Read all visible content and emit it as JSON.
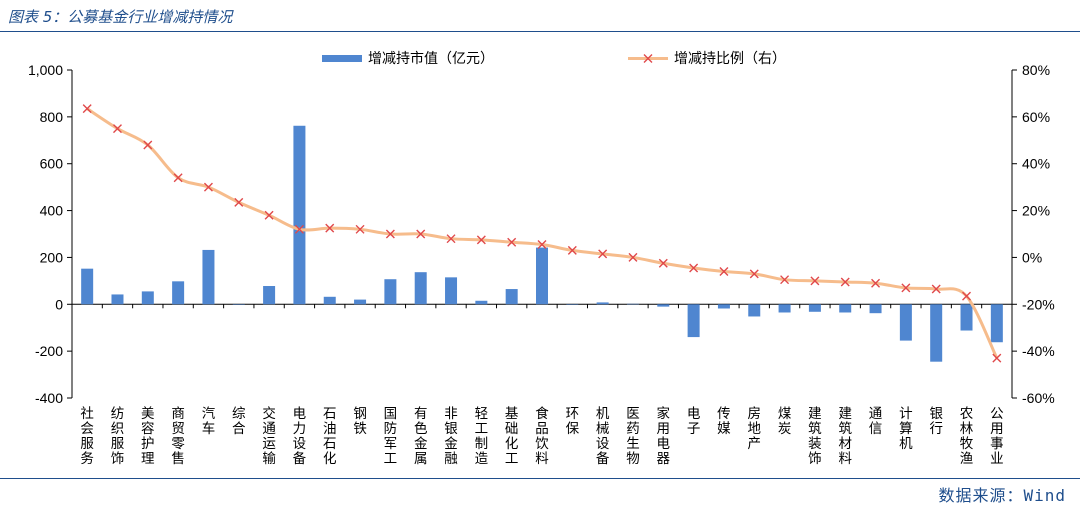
{
  "header": {
    "title": "图表 5：公募基金行业增减持情况"
  },
  "source": "数据来源：Wind",
  "chart_data": {
    "type": "bar+line",
    "title": "图表 5：公募基金行业增减持情况",
    "categories": [
      "社会服务",
      "纺织服饰",
      "美容护理",
      "商贸零售",
      "汽车",
      "综合",
      "交通运输",
      "电力设备",
      "石油石化",
      "钢铁",
      "国防军工",
      "有色金属",
      "非银金融",
      "轻工制造",
      "基础化工",
      "食品饮料",
      "环保",
      "机械设备",
      "医药生物",
      "家用电器",
      "电子",
      "传媒",
      "房地产",
      "煤炭",
      "建筑装饰",
      "建筑材料",
      "通信",
      "计算机",
      "银行",
      "农林牧渔",
      "公用事业"
    ],
    "series": [
      {
        "name": "增减持市值（亿元）",
        "type": "bar",
        "axis": "left",
        "color": "#4f86d0",
        "values": [
          152,
          42,
          55,
          98,
          232,
          0,
          78,
          762,
          32,
          20,
          107,
          137,
          115,
          15,
          65,
          242,
          0,
          8,
          2,
          -10,
          -140,
          -18,
          -52,
          -35,
          -32,
          -35,
          -38,
          -155,
          -245,
          -112,
          -162
        ]
      },
      {
        "name": "增减持比例（右）",
        "type": "line",
        "axis": "right",
        "line_color": "#f6bc8c",
        "marker_color": "#e0484a",
        "marker": "x",
        "values": [
          63.5,
          55,
          48,
          34,
          30,
          23.5,
          18,
          12,
          12.5,
          12,
          10,
          10,
          8,
          7.5,
          6.5,
          5.5,
          3,
          1.5,
          0,
          -2.5,
          -4.5,
          -6,
          -7,
          -9.5,
          -10,
          -10.5,
          -11,
          -13,
          -13.5,
          -16.5,
          -43
        ]
      }
    ],
    "y_left": {
      "min": -400,
      "max": 1000,
      "ticks": [
        "-400",
        "-200",
        "0",
        "200",
        "400",
        "600",
        "800",
        "1,000"
      ]
    },
    "y_right": {
      "min": -60,
      "max": 80,
      "ticks": [
        "-60%",
        "-40%",
        "-20%",
        "0%",
        "20%",
        "40%",
        "60%",
        "80%"
      ]
    },
    "grid": false,
    "legend": "top"
  }
}
